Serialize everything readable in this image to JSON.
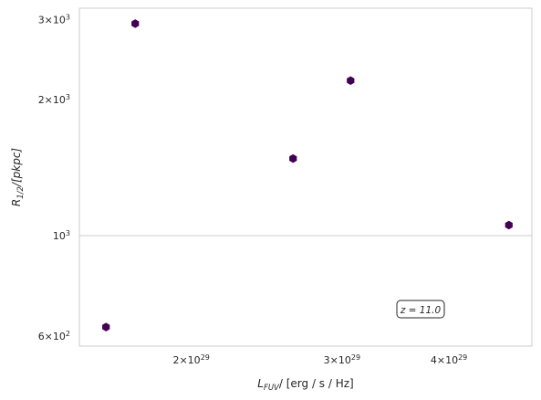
{
  "chart_data": {
    "type": "scatter",
    "title": "",
    "xlabel": {
      "main": "L",
      "sub": "FUV",
      "unit": "/ [erg / s / Hz]"
    },
    "ylabel": {
      "main": "R",
      "sub": "1/2",
      "unit": "/[pkpc]"
    },
    "xscale": "log",
    "yscale": "log",
    "xlim": [
      1.48e+29,
      5e+29
    ],
    "ylim": [
      570,
      3180
    ],
    "grid": "major gridlines only",
    "x_ticks": [
      {
        "value": 2e+29,
        "mantissa": "2",
        "exp": "29"
      },
      {
        "value": 3e+29,
        "mantissa": "3",
        "exp": "29"
      },
      {
        "value": 4e+29,
        "mantissa": "4",
        "exp": "29"
      }
    ],
    "y_ticks": [
      {
        "value": 600,
        "mantissa": "6",
        "exp": "2"
      },
      {
        "value": 1000,
        "mantissa": "",
        "exp": "3"
      },
      {
        "value": 2000,
        "mantissa": "2",
        "exp": "3"
      },
      {
        "value": 3000,
        "mantissa": "3",
        "exp": "3"
      }
    ],
    "marker": "hexagon",
    "marker_color": "#440154",
    "points": [
      {
        "x": 1.59e+29,
        "y": 628
      },
      {
        "x": 1.72e+29,
        "y": 2940
      },
      {
        "x": 2.63e+29,
        "y": 1480
      },
      {
        "x": 3.07e+29,
        "y": 2200
      },
      {
        "x": 4.7e+29,
        "y": 1055
      }
    ],
    "annotation": {
      "text": "z = 11.0",
      "placement": "lower-right"
    }
  }
}
